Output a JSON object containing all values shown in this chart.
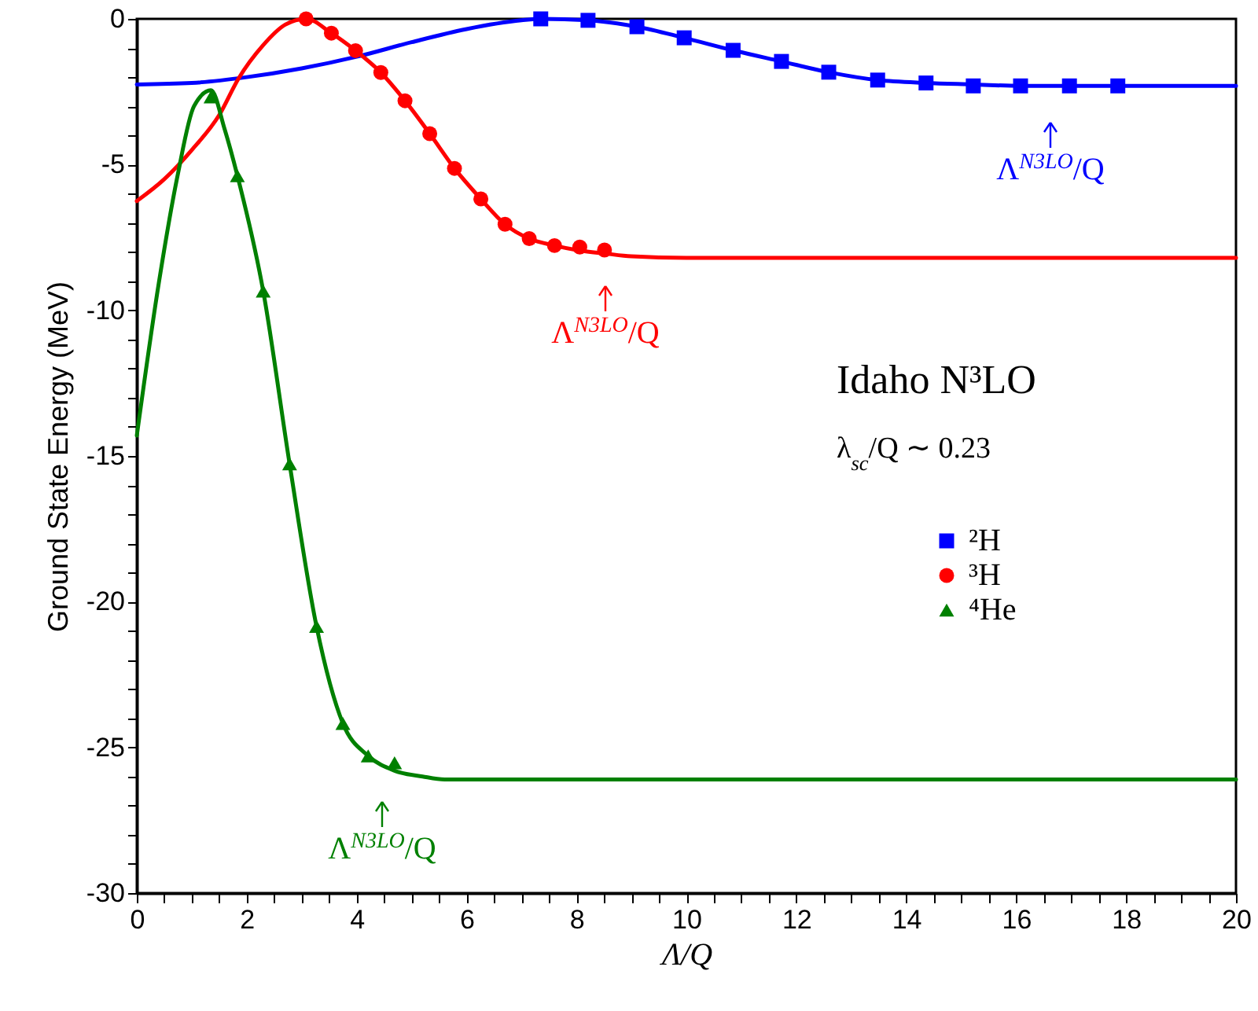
{
  "chart_data": {
    "type": "scatter",
    "xlabel": "Λ/Q",
    "ylabel": "Ground State Energy (MeV)",
    "xlim": [
      0,
      20
    ],
    "ylim": [
      -30,
      0
    ],
    "xticks": [
      0,
      {
        "value": 0.5,
        "label": null
      },
      {
        "value": 1,
        "label": null
      },
      {
        "value": 1.5,
        "label": null
      },
      2,
      {
        "value": 2.5,
        "label": null
      },
      {
        "value": 3,
        "label": null
      },
      {
        "value": 3.5,
        "label": null
      },
      4,
      {
        "value": 4.5,
        "label": null
      },
      {
        "value": 5,
        "label": null
      },
      {
        "value": 5.5,
        "label": null
      },
      6,
      {
        "value": 6.5,
        "label": null
      },
      {
        "value": 7,
        "label": null
      },
      {
        "value": 7.5,
        "label": null
      },
      8,
      {
        "value": 8.5,
        "label": null
      },
      {
        "value": 9,
        "label": null
      },
      {
        "value": 9.5,
        "label": null
      },
      10,
      {
        "value": 10.5,
        "label": null
      },
      {
        "value": 11,
        "label": null
      },
      {
        "value": 11.5,
        "label": null
      },
      12,
      {
        "value": 12.5,
        "label": null
      },
      {
        "value": 13,
        "label": null
      },
      {
        "value": 13.5,
        "label": null
      },
      14,
      {
        "value": 14.5,
        "label": null
      },
      {
        "value": 15,
        "label": null
      },
      {
        "value": 15.5,
        "label": null
      },
      16,
      {
        "value": 16.5,
        "label": null
      },
      {
        "value": 17,
        "label": null
      },
      {
        "value": 17.5,
        "label": null
      },
      18,
      {
        "value": 18.5,
        "label": null
      },
      {
        "value": 19,
        "label": null
      },
      {
        "value": 19.5,
        "label": null
      },
      20
    ],
    "yticks": [
      -30,
      {
        "value": -29,
        "label": null
      },
      {
        "value": -28,
        "label": null
      },
      {
        "value": -27,
        "label": null
      },
      {
        "value": -26,
        "label": null
      },
      -25,
      {
        "value": -24,
        "label": null
      },
      {
        "value": -23,
        "label": null
      },
      {
        "value": -22,
        "label": null
      },
      {
        "value": -21,
        "label": null
      },
      -20,
      {
        "value": -19,
        "label": null
      },
      {
        "value": -18,
        "label": null
      },
      {
        "value": -17,
        "label": null
      },
      {
        "value": -16,
        "label": null
      },
      -15,
      {
        "value": -14,
        "label": null
      },
      {
        "value": -13,
        "label": null
      },
      {
        "value": -12,
        "label": null
      },
      {
        "value": -11,
        "label": null
      },
      -10,
      {
        "value": -9,
        "label": null
      },
      {
        "value": -8,
        "label": null
      },
      {
        "value": -7,
        "label": null
      },
      {
        "value": -6,
        "label": null
      },
      -5,
      {
        "value": -4,
        "label": null
      },
      {
        "value": -3,
        "label": null
      },
      {
        "value": -2,
        "label": null
      },
      {
        "value": -1,
        "label": null
      },
      0
    ],
    "grid": false,
    "legend": "right",
    "series": [
      {
        "name": "²H",
        "color": "#0000ff",
        "marker": "square",
        "x": [
          7.35,
          8.21,
          9.1,
          9.96,
          10.85,
          11.73,
          12.59,
          13.48,
          14.36,
          15.22,
          16.08,
          16.97,
          17.85
        ],
        "values": [
          0,
          -0.05,
          -0.27,
          -0.65,
          -1.08,
          -1.46,
          -1.83,
          -2.1,
          -2.2,
          -2.3,
          -2.3,
          -2.3,
          -2.3
        ]
      },
      {
        "name": "³H",
        "color": "#ff0000",
        "marker": "circle",
        "x": [
          3.08,
          3.54,
          3.98,
          4.44,
          4.88,
          5.33,
          5.78,
          6.26,
          6.7,
          7.14,
          7.6,
          8.06,
          8.51
        ],
        "values": [
          0,
          -0.49,
          -1.09,
          -1.84,
          -2.81,
          -3.94,
          -5.13,
          -6.18,
          -7.05,
          -7.54,
          -7.78,
          -7.83,
          -7.93
        ]
      },
      {
        "name": "⁴He",
        "color": "#008000",
        "marker": "triangle",
        "x": [
          1.35,
          1.83,
          2.3,
          2.78,
          3.27,
          3.75,
          4.21,
          4.69
        ],
        "values": [
          -2.68,
          -5.38,
          -9.34,
          -15.27,
          -20.85,
          -24.18,
          -25.29,
          -25.53
        ]
      },
      {
        "type": "line",
        "color": "#0000ff",
        "marker": "none",
        "x": [
          0,
          1,
          2,
          3,
          4,
          5,
          6,
          7,
          7.35,
          8.21,
          9.1,
          9.96,
          10.85,
          11.73,
          12.59,
          13.48,
          14.36,
          15.22,
          16.08,
          17,
          18,
          20
        ],
        "values": [
          -2.25,
          -2.2,
          -2,
          -1.7,
          -1.3,
          -0.8,
          -0.35,
          -0.05,
          0,
          -0.05,
          -0.27,
          -0.65,
          -1.08,
          -1.46,
          -1.83,
          -2.1,
          -2.2,
          -2.25,
          -2.3,
          -2.3,
          -2.3,
          -2.3
        ]
      },
      {
        "type": "line",
        "color": "#ff0000",
        "marker": "none",
        "x": [
          0,
          0.5,
          1,
          1.5,
          1.85,
          2.3,
          2.7,
          3.08,
          3.54,
          3.98,
          4.44,
          4.88,
          5.33,
          5.78,
          6.26,
          6.7,
          7.14,
          7.6,
          8.06,
          8.51,
          9,
          10,
          12,
          20
        ],
        "values": [
          -6.25,
          -5.5,
          -4.5,
          -3.3,
          -2.05,
          -0.9,
          -0.2,
          0,
          -0.49,
          -1.09,
          -1.84,
          -2.81,
          -3.94,
          -5.13,
          -6.18,
          -7.05,
          -7.54,
          -7.78,
          -7.95,
          -8.05,
          -8.15,
          -8.2,
          -8.2,
          -8.2
        ]
      },
      {
        "type": "line",
        "color": "#008000",
        "marker": "none",
        "x": [
          0,
          0.4,
          0.75,
          1.04,
          1.35,
          1.6,
          1.83,
          2.3,
          2.78,
          3.27,
          3.75,
          4.21,
          4.69,
          5.2,
          5.6,
          20
        ],
        "values": [
          -14.3,
          -9.07,
          -5.3,
          -3,
          -2.45,
          -3.8,
          -5.38,
          -9.34,
          -15.27,
          -20.85,
          -24.18,
          -25.29,
          -25.8,
          -26,
          -26.1,
          -26.1
        ]
      }
    ],
    "annotations": [
      "Λ$^{N3LO}$/Q",
      "Λ$^{N3LO}$/Q",
      "Λ$^{N3LO}$/Q",
      "Idaho N³LO",
      "λ$_{sc}$/Q ∼ 0.23"
    ]
  }
}
